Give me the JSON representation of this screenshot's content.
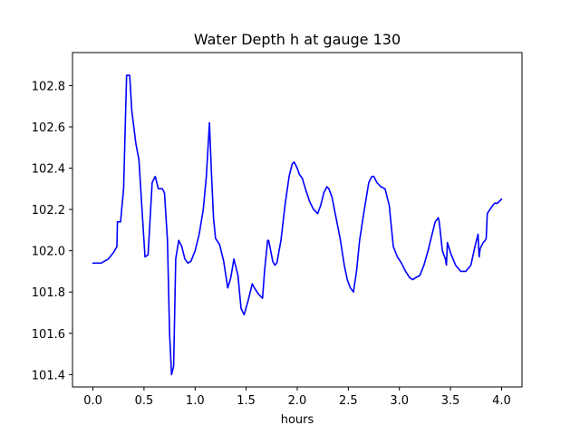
{
  "chart_data": {
    "type": "line",
    "title": "Water Depth h at gauge 130",
    "xlabel": "hours",
    "ylabel": "",
    "xlim": [
      -0.2,
      4.2
    ],
    "ylim": [
      101.34,
      102.96
    ],
    "grid": false,
    "legend": "none",
    "x_ticks": [
      0.0,
      0.5,
      1.0,
      1.5,
      2.0,
      2.5,
      3.0,
      3.5,
      4.0
    ],
    "x_tick_labels": [
      "0.0",
      "0.5",
      "1.0",
      "1.5",
      "2.0",
      "2.5",
      "3.0",
      "3.5",
      "4.0"
    ],
    "y_ticks": [
      101.4,
      101.6,
      101.8,
      102.0,
      102.2,
      102.4,
      102.6,
      102.8
    ],
    "y_tick_labels": [
      "101.4",
      "101.6",
      "101.8",
      "102.0",
      "102.2",
      "102.4",
      "102.6",
      "102.8"
    ],
    "series": [
      {
        "color": "#0000ff",
        "x": [
          0.0,
          0.08,
          0.15,
          0.2,
          0.235,
          0.24,
          0.27,
          0.3,
          0.33,
          0.36,
          0.38,
          0.42,
          0.45,
          0.48,
          0.51,
          0.54,
          0.58,
          0.61,
          0.64,
          0.68,
          0.7,
          0.73,
          0.75,
          0.77,
          0.79,
          0.81,
          0.84,
          0.87,
          0.9,
          0.93,
          0.96,
          1.0,
          1.04,
          1.08,
          1.11,
          1.14,
          1.16,
          1.18,
          1.2,
          1.24,
          1.28,
          1.32,
          1.35,
          1.38,
          1.42,
          1.45,
          1.48,
          1.52,
          1.56,
          1.58,
          1.62,
          1.66,
          1.68,
          1.71,
          1.72,
          1.74,
          1.76,
          1.78,
          1.8,
          1.84,
          1.88,
          1.92,
          1.95,
          1.97,
          2.0,
          2.02,
          2.05,
          2.08,
          2.12,
          2.16,
          2.2,
          2.23,
          2.26,
          2.29,
          2.31,
          2.34,
          2.38,
          2.42,
          2.46,
          2.49,
          2.52,
          2.55,
          2.58,
          2.61,
          2.65,
          2.7,
          2.73,
          2.75,
          2.78,
          2.82,
          2.86,
          2.9,
          2.94,
          2.98,
          3.02,
          3.06,
          3.1,
          3.13,
          3.16,
          3.2,
          3.24,
          3.28,
          3.32,
          3.35,
          3.38,
          3.39,
          3.42,
          3.45,
          3.46,
          3.47,
          3.5,
          3.55,
          3.6,
          3.65,
          3.7,
          3.74,
          3.77,
          3.78,
          3.79,
          3.82,
          3.84,
          3.85,
          3.86,
          3.9,
          3.93,
          3.96,
          3.98,
          4.0
        ],
        "y": [
          101.94,
          101.94,
          101.96,
          101.99,
          102.02,
          102.14,
          102.14,
          102.3,
          102.85,
          102.85,
          102.68,
          102.52,
          102.44,
          102.2,
          101.97,
          101.98,
          102.33,
          102.36,
          102.3,
          102.3,
          102.28,
          102.05,
          101.6,
          101.4,
          101.44,
          101.96,
          102.05,
          102.02,
          101.96,
          101.94,
          101.95,
          102.0,
          102.08,
          102.2,
          102.36,
          102.62,
          102.38,
          102.16,
          102.06,
          102.03,
          101.95,
          101.82,
          101.87,
          101.96,
          101.88,
          101.72,
          101.69,
          101.76,
          101.84,
          101.82,
          101.79,
          101.77,
          101.9,
          102.05,
          102.05,
          102.0,
          101.95,
          101.93,
          101.94,
          102.05,
          102.22,
          102.36,
          102.42,
          102.43,
          102.4,
          102.37,
          102.35,
          102.3,
          102.24,
          102.2,
          102.18,
          102.22,
          102.28,
          102.31,
          102.3,
          102.26,
          102.16,
          102.06,
          101.93,
          101.86,
          101.82,
          101.8,
          101.9,
          102.05,
          102.18,
          102.33,
          102.36,
          102.36,
          102.33,
          102.31,
          102.3,
          102.22,
          102.02,
          101.97,
          101.94,
          101.9,
          101.87,
          101.86,
          101.87,
          101.88,
          101.93,
          102.0,
          102.08,
          102.14,
          102.16,
          102.14,
          102.0,
          101.96,
          101.93,
          102.04,
          101.99,
          101.93,
          101.9,
          101.9,
          101.93,
          102.02,
          102.08,
          101.97,
          102.01,
          102.04,
          102.05,
          102.06,
          102.18,
          102.21,
          102.23,
          102.23,
          102.24,
          102.25
        ]
      }
    ]
  }
}
